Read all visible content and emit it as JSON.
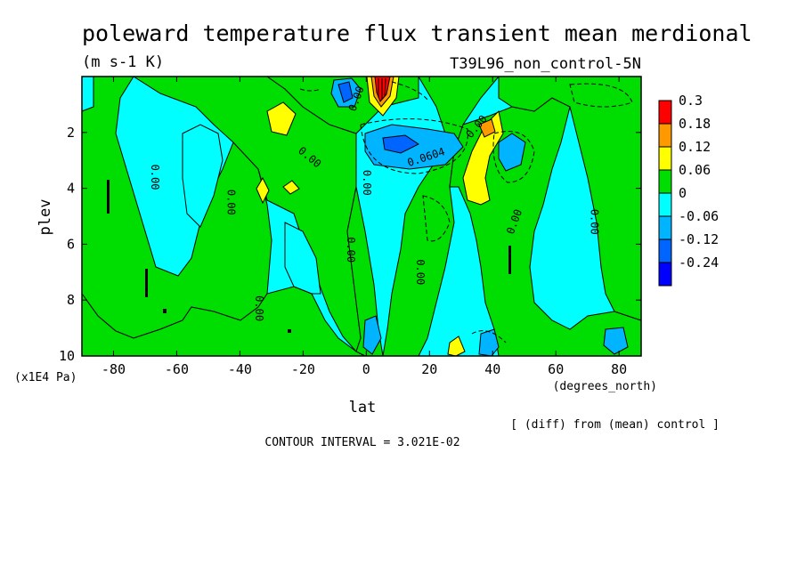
{
  "chart_data": {
    "type": "heatmap",
    "title": "poleward temperature flux transient mean merdional",
    "units": "(m s-1 K)",
    "experiment": "T39L96_non_control-5N",
    "xlabel": "lat",
    "xunits": "(degrees_north)",
    "ylabel": "plev",
    "yunits": "(x1E4 Pa)",
    "xlim": [
      -90,
      87
    ],
    "ylim": [
      10,
      0
    ],
    "x_ticks": [
      -80,
      -60,
      -40,
      -20,
      0,
      20,
      40,
      60,
      80
    ],
    "y_ticks": [
      2,
      4,
      6,
      8,
      10
    ],
    "x_tick_labels": [
      "-80",
      "-60",
      "-40",
      "-20",
      "0",
      "20",
      "40",
      "60",
      "80"
    ],
    "y_tick_labels": [
      "2",
      "4",
      "6",
      "8",
      "10"
    ],
    "note": "[ (diff) from (mean) control ]",
    "contour_interval": "CONTOUR INTERVAL = 3.021E-02",
    "colorbar": {
      "labels": [
        "0.3",
        "0.18",
        "0.12",
        "0.06",
        "0",
        "-0.06",
        "-0.12",
        "-0.24"
      ],
      "colors": [
        "#ff0000",
        "#ff9900",
        "#ffff00",
        "#00dd00",
        "#00ffff",
        "#00b4ff",
        "#0064ff",
        "#0000ff"
      ]
    },
    "contour_labels": [
      {
        "text": "0.00",
        "lon": -67,
        "plev": 3.6,
        "rot": 90
      },
      {
        "text": "0.00",
        "lon": -43,
        "plev": 4.5,
        "rot": 90
      },
      {
        "text": "0.00",
        "lon": -18,
        "plev": 2.9,
        "rot": 40
      },
      {
        "text": "0.00",
        "lon": -5,
        "plev": 6.2,
        "rot": 90
      },
      {
        "text": "0.00",
        "lon": -34,
        "plev": 8.3,
        "rot": 90
      },
      {
        "text": "0.00",
        "lon": 0,
        "plev": 3.8,
        "rot": 90
      },
      {
        "text": "0.0604",
        "lon": 19,
        "plev": 2.9,
        "rot": -18
      },
      {
        "text": "0.00",
        "lon": 17,
        "plev": 7.0,
        "rot": 90
      },
      {
        "text": "0.00",
        "lon": 35,
        "plev": 1.8,
        "rot": -50
      },
      {
        "text": "0.00",
        "lon": 47,
        "plev": 5.2,
        "rot": -70
      },
      {
        "text": "0.00",
        "lon": 72,
        "plev": 5.2,
        "rot": 90
      },
      {
        "text": "0.00",
        "lon": -3,
        "plev": 0.8,
        "rot": -70
      }
    ]
  }
}
